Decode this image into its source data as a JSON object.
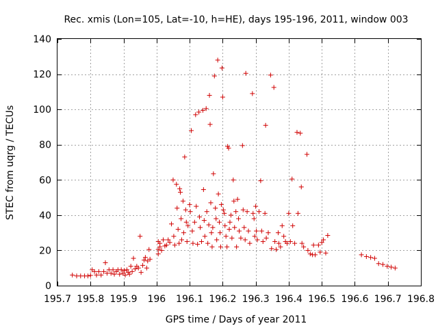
{
  "chart_data": {
    "type": "scatter",
    "title": "Rec. xmis (Lon=105, Lat=-10, h=HE), days 195-196, 2011, window 003",
    "xlabel": "GPS time / Days of year 2011",
    "ylabel": "STEC from uqrg / TECUs",
    "xlim": [
      195.7,
      196.8
    ],
    "ylim": [
      0,
      140
    ],
    "xticks": [
      195.7,
      195.8,
      195.9,
      196,
      196.1,
      196.2,
      196.3,
      196.4,
      196.5,
      196.6,
      196.7,
      196.8
    ],
    "xtick_labels": [
      "195.7",
      "195.8",
      "195.9",
      "196",
      "196.1",
      "196.2",
      "196.3",
      "196.4",
      "196.5",
      "196.6",
      "196.7",
      "196.8"
    ],
    "yticks": [
      0,
      20,
      40,
      60,
      80,
      100,
      120,
      140
    ],
    "ytick_labels": [
      "0",
      "20",
      "40",
      "60",
      "80",
      "100",
      "120",
      "140"
    ],
    "grid": true,
    "marker": "+",
    "color": "#d00000",
    "series": [
      {
        "points": [
          [
            195.745,
            6
          ],
          [
            195.758,
            5.5
          ],
          [
            195.77,
            5.5
          ],
          [
            195.782,
            5.5
          ],
          [
            195.792,
            5.5
          ],
          [
            195.8,
            5.8
          ],
          [
            195.805,
            9
          ],
          [
            195.812,
            8
          ],
          [
            195.818,
            6
          ],
          [
            195.825,
            8
          ],
          [
            195.832,
            6
          ],
          [
            195.84,
            8
          ],
          [
            195.845,
            13
          ],
          [
            195.85,
            7
          ],
          [
            195.856,
            9
          ],
          [
            195.862,
            7
          ],
          [
            195.868,
            9
          ],
          [
            195.872,
            6.5
          ],
          [
            195.878,
            8
          ],
          [
            195.883,
            9
          ],
          [
            195.888,
            6.5
          ],
          [
            195.893,
            9
          ],
          [
            195.898,
            7
          ],
          [
            195.902,
            8.5
          ],
          [
            195.905,
            6
          ],
          [
            195.91,
            9
          ],
          [
            195.914,
            7.5
          ],
          [
            195.918,
            6.5
          ],
          [
            195.922,
            11
          ],
          [
            195.926,
            8
          ],
          [
            195.93,
            15.5
          ],
          [
            195.935,
            9.5
          ],
          [
            195.94,
            11
          ],
          [
            195.945,
            10
          ],
          [
            195.95,
            28
          ],
          [
            195.953,
            7.5
          ],
          [
            195.958,
            11.5
          ],
          [
            195.962,
            14.5
          ],
          [
            195.966,
            16
          ],
          [
            195.97,
            10
          ],
          [
            195.973,
            14
          ],
          [
            195.977,
            20.5
          ],
          [
            195.98,
            15
          ],
          [
            196.005,
            18
          ],
          [
            196.005,
            20.5
          ],
          [
            196.005,
            25
          ],
          [
            196.01,
            22
          ],
          [
            196.01,
            24
          ],
          [
            196.015,
            20
          ],
          [
            196.02,
            26
          ],
          [
            196.025,
            22.5
          ],
          [
            196.03,
            23
          ],
          [
            196.035,
            26
          ],
          [
            196.04,
            24.5
          ],
          [
            196.045,
            35
          ],
          [
            196.05,
            60
          ],
          [
            196.052,
            28
          ],
          [
            196.055,
            23
          ],
          [
            196.06,
            57.5
          ],
          [
            196.062,
            44
          ],
          [
            196.065,
            32
          ],
          [
            196.068,
            24
          ],
          [
            196.07,
            55
          ],
          [
            196.072,
            53
          ],
          [
            196.074,
            38
          ],
          [
            196.076,
            26
          ],
          [
            196.08,
            48
          ],
          [
            196.082,
            30
          ],
          [
            196.085,
            73
          ],
          [
            196.088,
            43
          ],
          [
            196.09,
            36
          ],
          [
            196.092,
            25
          ],
          [
            196.095,
            34
          ],
          [
            196.1,
            46
          ],
          [
            196.102,
            42
          ],
          [
            196.105,
            88
          ],
          [
            196.108,
            31
          ],
          [
            196.11,
            24
          ],
          [
            196.115,
            36
          ],
          [
            196.118,
            97
          ],
          [
            196.12,
            45
          ],
          [
            196.124,
            23.5
          ],
          [
            196.128,
            98.5
          ],
          [
            196.13,
            39
          ],
          [
            196.132,
            33
          ],
          [
            196.136,
            25
          ],
          [
            196.14,
            99.5
          ],
          [
            196.142,
            54.5
          ],
          [
            196.144,
            37
          ],
          [
            196.146,
            28
          ],
          [
            196.15,
            100.5
          ],
          [
            196.152,
            42
          ],
          [
            196.155,
            24
          ],
          [
            196.158,
            34.5
          ],
          [
            196.16,
            108
          ],
          [
            196.162,
            91.5
          ],
          [
            196.164,
            47
          ],
          [
            196.166,
            30
          ],
          [
            196.168,
            22
          ],
          [
            196.17,
            33
          ],
          [
            196.172,
            63.5
          ],
          [
            196.175,
            119
          ],
          [
            196.178,
            44
          ],
          [
            196.18,
            38
          ],
          [
            196.182,
            26
          ],
          [
            196.185,
            128
          ],
          [
            196.187,
            52
          ],
          [
            196.19,
            36
          ],
          [
            196.192,
            30
          ],
          [
            196.194,
            22
          ],
          [
            196.196,
            46
          ],
          [
            196.198,
            123.5
          ],
          [
            196.2,
            107
          ],
          [
            196.202,
            43
          ],
          [
            196.205,
            41
          ],
          [
            196.207,
            34
          ],
          [
            196.21,
            28
          ],
          [
            196.213,
            22
          ],
          [
            196.215,
            79
          ],
          [
            196.218,
            78
          ],
          [
            196.22,
            32
          ],
          [
            196.222,
            36
          ],
          [
            196.225,
            40
          ],
          [
            196.228,
            27
          ],
          [
            196.232,
            60
          ],
          [
            196.234,
            48
          ],
          [
            196.236,
            33
          ],
          [
            196.24,
            42
          ],
          [
            196.242,
            22
          ],
          [
            196.245,
            49
          ],
          [
            196.248,
            38
          ],
          [
            196.25,
            31
          ],
          [
            196.255,
            27
          ],
          [
            196.26,
            79.5
          ],
          [
            196.262,
            43
          ],
          [
            196.265,
            33
          ],
          [
            196.268,
            26
          ],
          [
            196.27,
            120.5
          ],
          [
            196.274,
            42
          ],
          [
            196.278,
            31
          ],
          [
            196.282,
            24
          ],
          [
            196.29,
            109
          ],
          [
            196.292,
            41
          ],
          [
            196.295,
            38
          ],
          [
            196.297,
            28
          ],
          [
            196.3,
            45
          ],
          [
            196.302,
            31
          ],
          [
            196.305,
            26
          ],
          [
            196.31,
            42
          ],
          [
            196.315,
            59.5
          ],
          [
            196.318,
            31
          ],
          [
            196.322,
            25
          ],
          [
            196.328,
            41
          ],
          [
            196.33,
            91
          ],
          [
            196.332,
            27
          ],
          [
            196.338,
            30
          ],
          [
            196.345,
            119.5
          ],
          [
            196.348,
            21
          ],
          [
            196.355,
            112.5
          ],
          [
            196.358,
            25
          ],
          [
            196.362,
            20.5
          ],
          [
            196.368,
            30
          ],
          [
            196.37,
            24
          ],
          [
            196.375,
            22
          ],
          [
            196.38,
            34
          ],
          [
            196.385,
            28
          ],
          [
            196.39,
            25
          ],
          [
            196.395,
            24
          ],
          [
            196.4,
            41
          ],
          [
            196.405,
            25
          ],
          [
            196.41,
            60.5
          ],
          [
            196.412,
            34
          ],
          [
            196.418,
            24
          ],
          [
            196.425,
            87
          ],
          [
            196.428,
            41
          ],
          [
            196.435,
            86.5
          ],
          [
            196.438,
            56
          ],
          [
            196.44,
            24
          ],
          [
            196.445,
            22
          ],
          [
            196.455,
            74.5
          ],
          [
            196.458,
            20
          ],
          [
            196.465,
            18
          ],
          [
            196.472,
            17.5
          ],
          [
            196.475,
            23
          ],
          [
            196.48,
            17.5
          ],
          [
            196.49,
            23
          ],
          [
            196.495,
            19
          ],
          [
            196.5,
            24.5
          ],
          [
            196.505,
            26
          ],
          [
            196.512,
            18.5
          ],
          [
            196.518,
            28.5
          ],
          [
            196.62,
            17.5
          ],
          [
            196.635,
            16.5
          ],
          [
            196.648,
            16
          ],
          [
            196.66,
            15.5
          ],
          [
            196.672,
            12.5
          ],
          [
            196.685,
            12
          ],
          [
            196.698,
            11
          ],
          [
            196.71,
            10.5
          ],
          [
            196.722,
            10
          ]
        ]
      }
    ]
  }
}
